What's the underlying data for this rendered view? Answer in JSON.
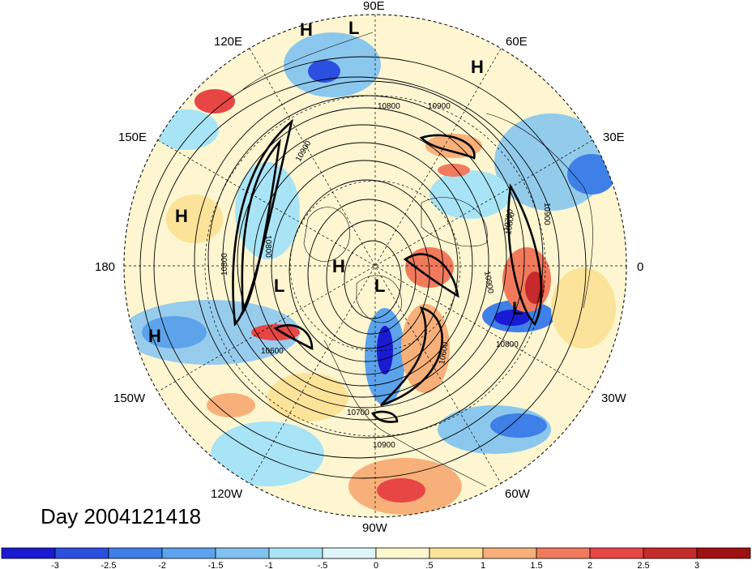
{
  "map": {
    "projection": "north-polar-stereographic",
    "lon_labels": [
      "90E",
      "60E",
      "30E",
      "0",
      "30W",
      "60W",
      "90W",
      "120W",
      "150W",
      "180",
      "150E",
      "120E"
    ],
    "pressure_systems": [
      {
        "type": "H",
        "label": "H"
      },
      {
        "type": "L",
        "label": "L"
      },
      {
        "type": "H",
        "label": "H"
      },
      {
        "type": "H",
        "label": "H"
      },
      {
        "type": "L",
        "label": "L"
      },
      {
        "type": "H",
        "label": "H"
      },
      {
        "type": "L",
        "label": "L"
      },
      {
        "type": "H",
        "label": "H"
      },
      {
        "type": "L",
        "label": "L"
      }
    ],
    "contour_labels": [
      "10800",
      "10900",
      "10900",
      "10900",
      "10800",
      "10900",
      "10800",
      "10800",
      "10600",
      "10700",
      "10600",
      "10800",
      "10900",
      "10700"
    ],
    "day_label": "Day 2004121418"
  },
  "colorbar": {
    "ticks": [
      "-3",
      "-2.5",
      "-2",
      "-1.5",
      "-1",
      "-.5",
      "0",
      ".5",
      "1",
      "1.5",
      "2",
      "2.5",
      "3"
    ],
    "colors": [
      "#1a1ad2",
      "#2b4fe0",
      "#3f7fe8",
      "#5ca3ec",
      "#80c3f0",
      "#a8e4f6",
      "#dff6fb",
      "#fdf8cf",
      "#fce39a",
      "#f8b07a",
      "#f27a5c",
      "#e84545",
      "#c72a2a",
      "#a01010"
    ]
  }
}
